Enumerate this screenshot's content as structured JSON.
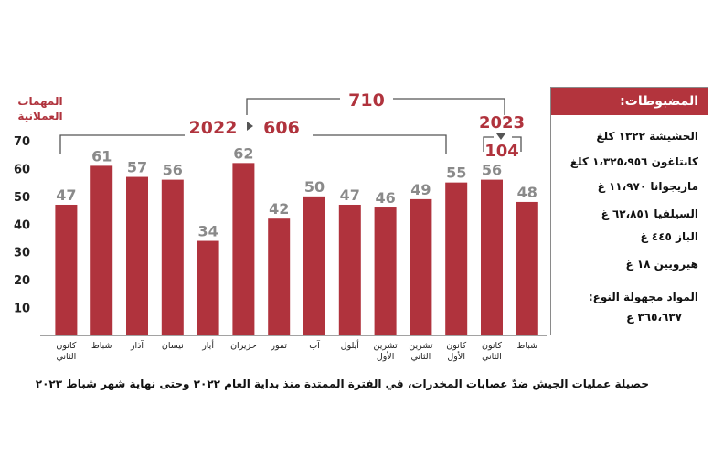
{
  "chart_data": {
    "type": "bar",
    "ylabel": "المهمات العملانية",
    "ylabel_lines": [
      "المهمات",
      "العملانية"
    ],
    "ylim": [
      0,
      70
    ],
    "yticks": [
      10,
      20,
      30,
      40,
      50,
      60,
      70
    ],
    "bar_color": "#b0333d",
    "categories": [
      [
        "كانون",
        "الثاني"
      ],
      [
        "شباط"
      ],
      [
        "آذار"
      ],
      [
        "نيسان"
      ],
      [
        "أيار"
      ],
      [
        "حزيران"
      ],
      [
        "تموز"
      ],
      [
        "آب"
      ],
      [
        "أيلول"
      ],
      [
        "تشرين",
        "الأول"
      ],
      [
        "تشرين",
        "الثاني"
      ],
      [
        "كانون",
        "الأول"
      ],
      [
        "كانون",
        "الثاني"
      ],
      [
        "شباط"
      ]
    ],
    "values": [
      47,
      61,
      57,
      56,
      34,
      62,
      42,
      50,
      47,
      46,
      49,
      55,
      56,
      48
    ],
    "annotations": {
      "total_value": "710",
      "year_2022_label": "2022",
      "year_2022_value": "606",
      "year_2023_label": "2023",
      "year_2023_value": "104"
    }
  },
  "seized_panel": {
    "title": "المضبوطات:",
    "items": [
      "الحشيشة ١٣٢٢ كلغ",
      "كابتاغون ١،٣٢٥،٩٥٦ كلغ",
      "ماريجوانا ١١،٩٧٠ غ",
      "السيلفيا ٦٢،٨٥١ غ",
      "الباز ٤٤٥ غ",
      "هيرويين ١٨ غ"
    ],
    "unknown_label": "المواد مجهولة النوع:",
    "unknown_value": "٣٦٥،٦٣٧ غ"
  },
  "caption": "حصيلة عمليات الجيش ضدّ عصابات المخدرات، في الفترة الممتدة منذ بداية العام ٢٠٢٢ وحتى نهاية شهر شباط ٢٠٢٣"
}
